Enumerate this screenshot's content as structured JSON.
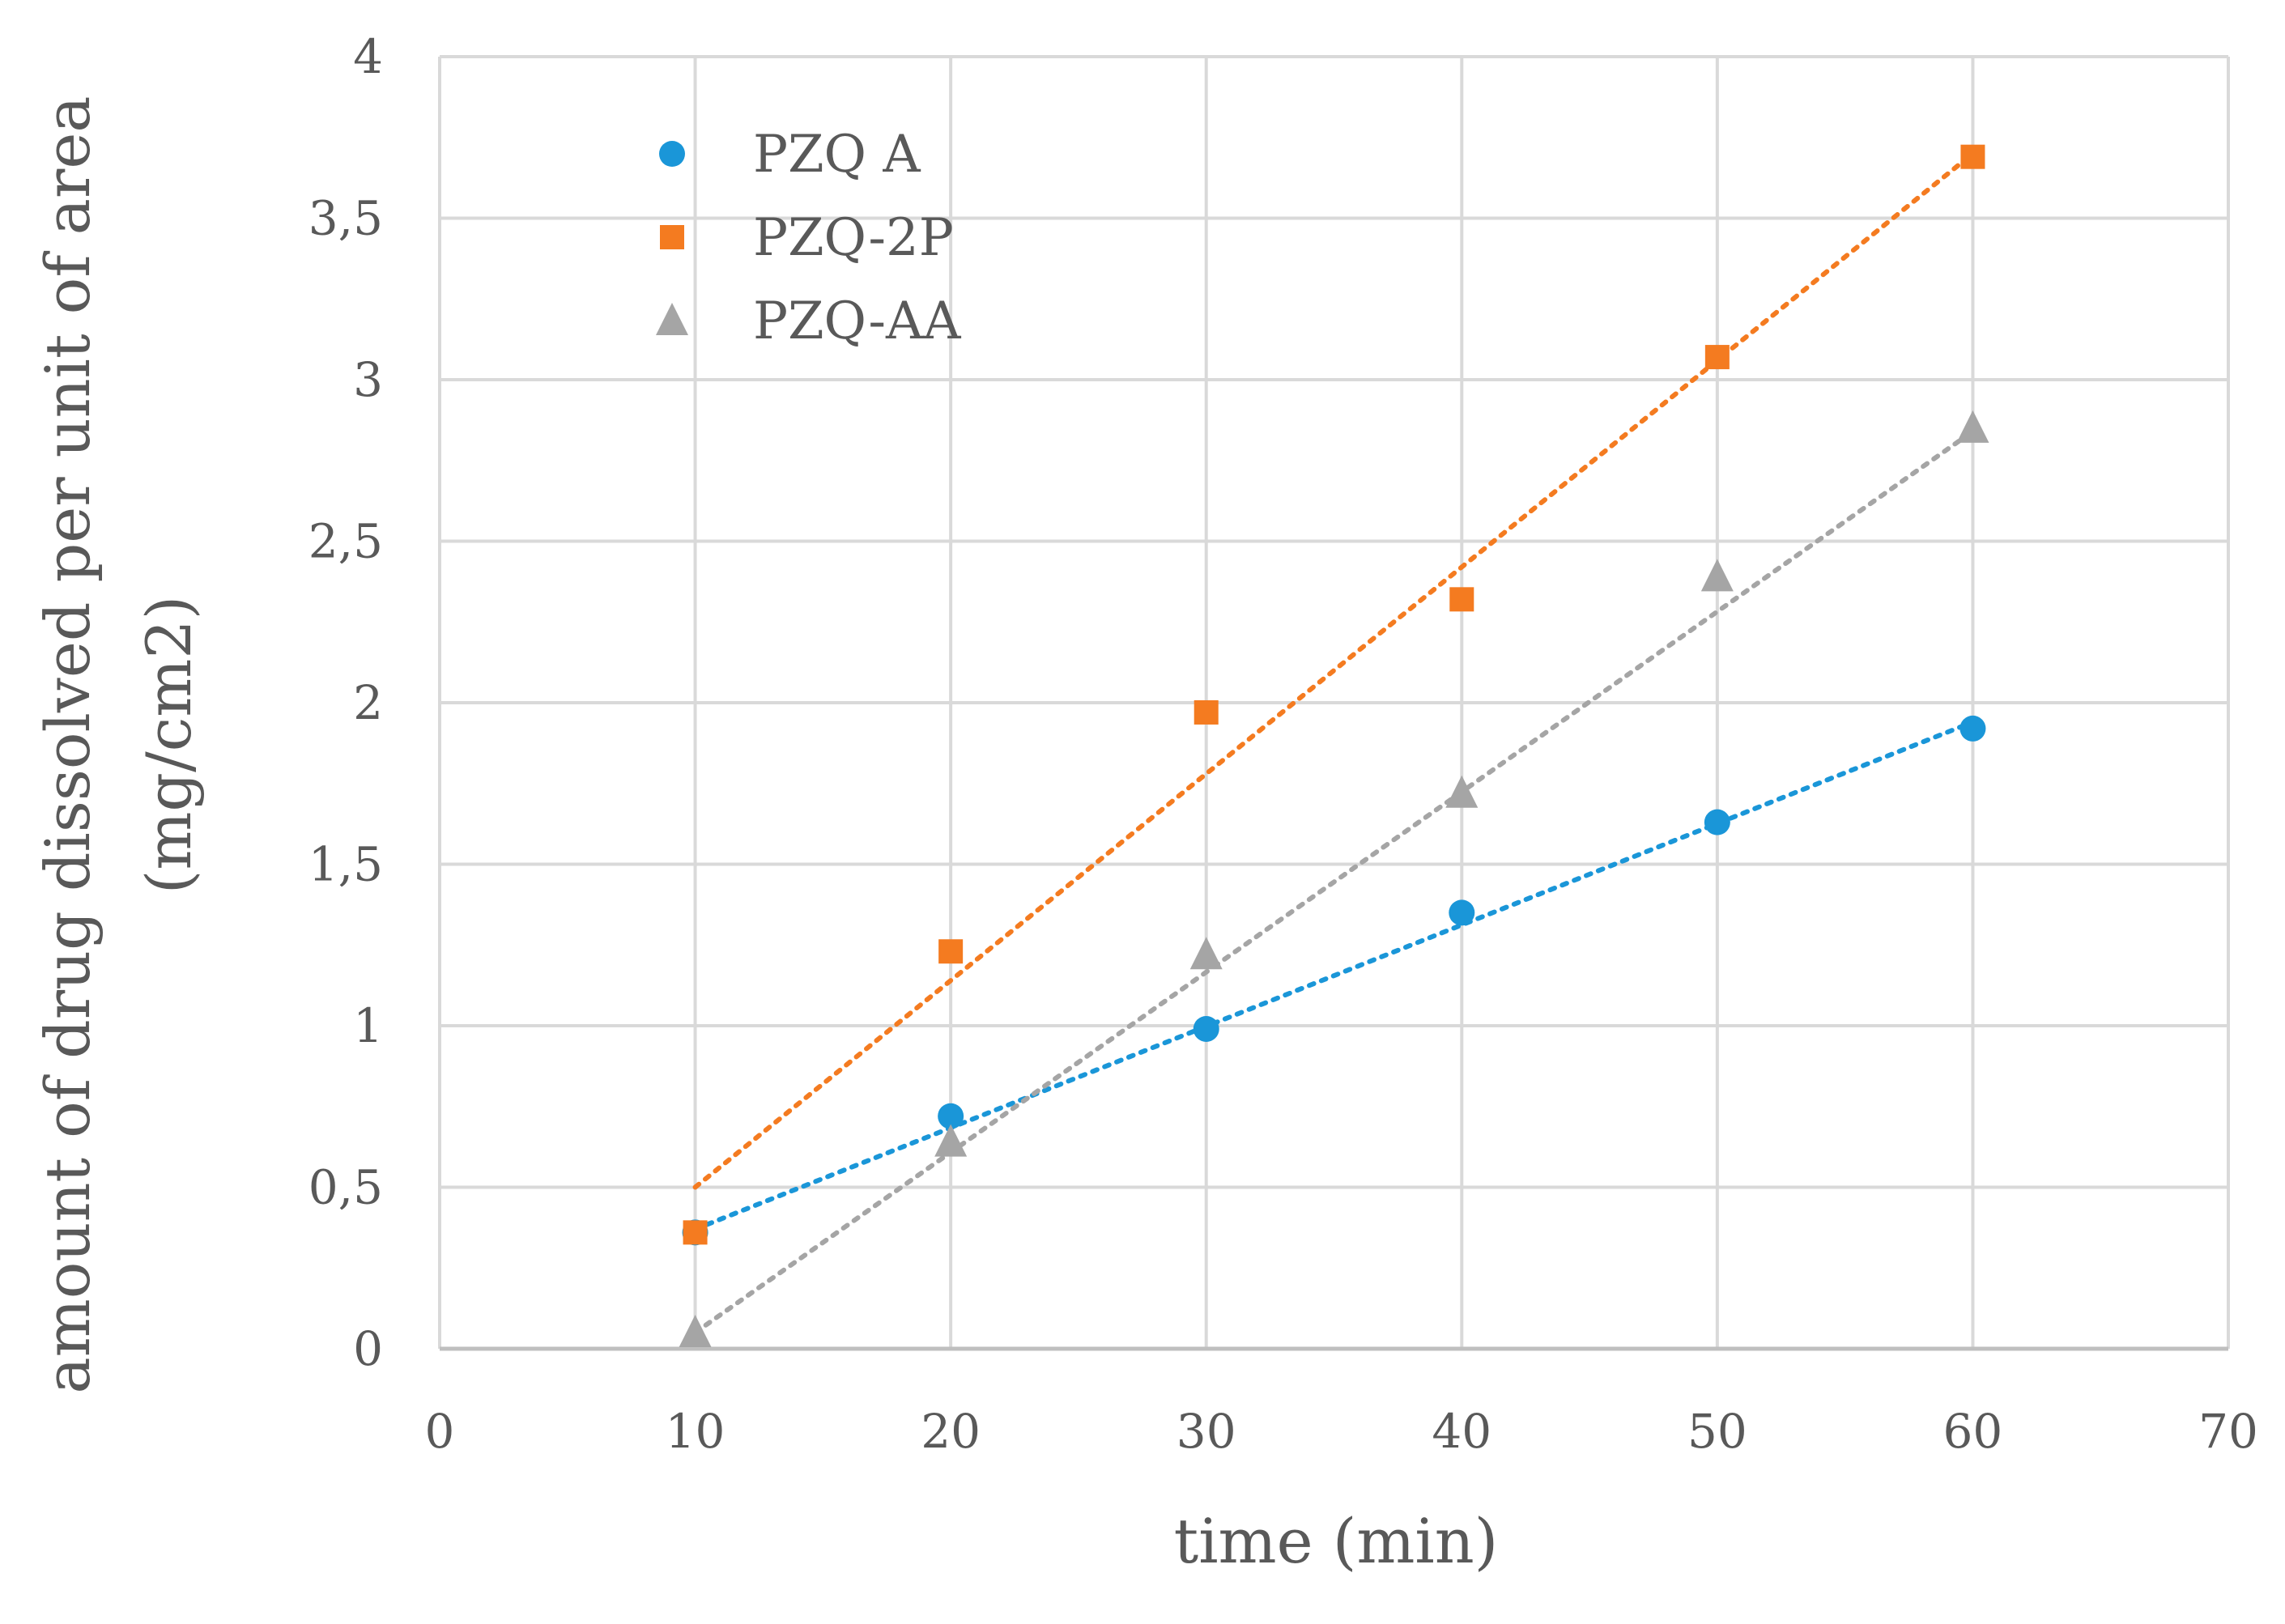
{
  "chart_data": {
    "type": "scatter",
    "title": "",
    "xlabel": "time (min)",
    "ylabel_lines": [
      "amount of drug dissolved  per unit of area",
      "(mg/cm2)"
    ],
    "xlim": [
      0,
      70
    ],
    "ylim": [
      0,
      4
    ],
    "x_ticks": [
      0,
      10,
      20,
      30,
      40,
      50,
      60,
      70
    ],
    "x_tick_labels": [
      "0",
      "10",
      "20",
      "30",
      "40",
      "50",
      "60",
      "70"
    ],
    "y_ticks": [
      0,
      0.5,
      1,
      1.5,
      2,
      2.5,
      3,
      3.5,
      4
    ],
    "y_tick_labels": [
      "0",
      "0,5",
      "1",
      "1,5",
      "2",
      "2,5",
      "3",
      "3,5",
      "4"
    ],
    "grid": true,
    "legend_position": "top-left",
    "series": [
      {
        "name": "PZQ A",
        "marker": "circle",
        "color": "#1a96d8",
        "x": [
          10,
          20,
          30,
          40,
          50,
          60
        ],
        "y": [
          0.36,
          0.72,
          0.99,
          1.35,
          1.63,
          1.92
        ],
        "trendline": {
          "type": "linear",
          "x": [
            10,
            60
          ],
          "y": [
            0.37,
            1.94
          ]
        }
      },
      {
        "name": "PZQ-2P",
        "marker": "square",
        "color": "#f47b20",
        "x": [
          10,
          20,
          30,
          40,
          50,
          60
        ],
        "y": [
          0.36,
          1.23,
          1.97,
          2.32,
          3.07,
          3.69
        ],
        "trendline": {
          "type": "linear",
          "x": [
            10,
            60
          ],
          "y": [
            0.5,
            3.7
          ]
        }
      },
      {
        "name": "PZQ-AA",
        "marker": "triangle",
        "color": "#a5a5a5",
        "x": [
          10,
          20,
          30,
          40,
          50,
          60
        ],
        "y": [
          0.05,
          0.64,
          1.22,
          1.72,
          2.39,
          2.85
        ],
        "trendline": {
          "type": "linear",
          "x": [
            10,
            60
          ],
          "y": [
            0.05,
            2.84
          ]
        }
      }
    ]
  }
}
